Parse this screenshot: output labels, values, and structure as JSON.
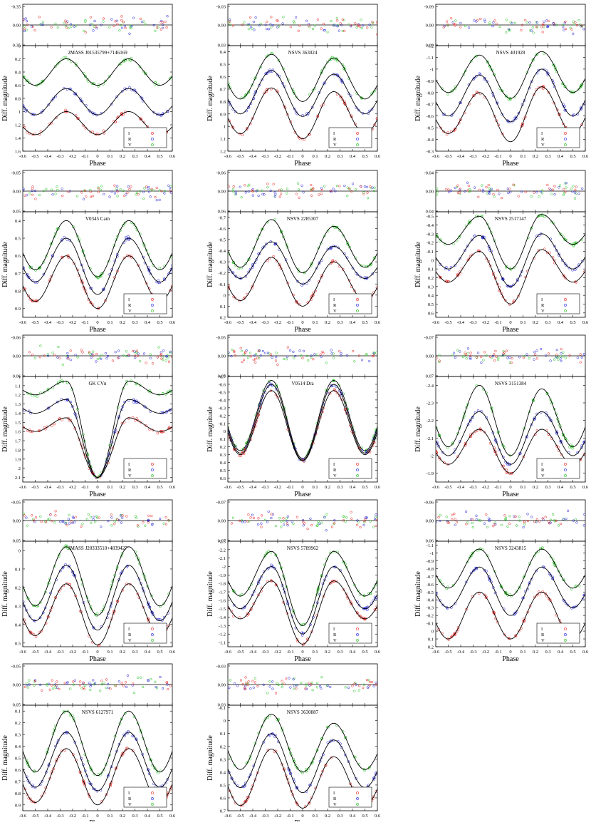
{
  "figure": {
    "x_label": "Phase",
    "y_label": "Diff. magnitude",
    "legend": [
      "I",
      "R",
      "V"
    ],
    "colors": {
      "I": "#e8201e",
      "R": "#1f1fd8",
      "V": "#22c21e",
      "model": "#000000"
    },
    "x_ticks": [
      "-0.6",
      "-0.5",
      "-0.4",
      "-0.3",
      "-0.2",
      "-0.1",
      "0",
      "0.1",
      "0.2",
      "0.3",
      "0.4",
      "0.5",
      "0.6"
    ]
  },
  "chart_data": [
    {
      "type": "scatter",
      "title": "2MASS J01535799+7146169",
      "xlim": [
        -0.6,
        0.6
      ],
      "residual_ticks": [
        "-0.35",
        "0.00",
        "0.35"
      ],
      "ylim": [
        1.6,
        0.0
      ],
      "y_ticks": [
        "0",
        "0.2",
        "0.4",
        "0.6",
        "0.8",
        "1",
        "1.2",
        "1.4",
        "1.6"
      ],
      "x": [
        -0.5,
        -0.25,
        0,
        0.25,
        0.5
      ],
      "series": [
        {
          "name": "V",
          "values": [
            0.6,
            0.2,
            0.6,
            0.2,
            0.6
          ]
        },
        {
          "name": "R",
          "values": [
            1.05,
            0.65,
            1.05,
            0.65,
            1.05
          ]
        },
        {
          "name": "I",
          "values": [
            1.35,
            1.0,
            1.35,
            1.0,
            1.35
          ]
        }
      ]
    },
    {
      "type": "scatter",
      "title": "NSVS 363024",
      "xlim": [
        -0.6,
        0.6
      ],
      "residual_ticks": [
        "-0.03",
        "0.00",
        "0.03"
      ],
      "ylim": [
        1.2,
        0.35
      ],
      "y_ticks": [
        "0.4",
        "0.5",
        "0.6",
        "0.7",
        "0.8",
        "0.9",
        "1",
        "1.1",
        "1.2"
      ],
      "x": [
        -0.5,
        -0.25,
        0,
        0.25,
        0.5
      ],
      "series": [
        {
          "name": "V",
          "values": [
            0.78,
            0.42,
            0.8,
            0.45,
            0.78
          ]
        },
        {
          "name": "R",
          "values": [
            0.9,
            0.55,
            0.92,
            0.58,
            0.9
          ]
        },
        {
          "name": "I",
          "values": [
            1.06,
            0.69,
            1.1,
            0.72,
            1.06
          ]
        }
      ]
    },
    {
      "type": "scatter",
      "title": "NSVS 401928",
      "xlim": [
        -0.6,
        0.6
      ],
      "residual_ticks": [
        "-0.09",
        "0.00",
        "0.09"
      ],
      "ylim": [
        -0.3,
        -1.2
      ],
      "y_ticks": [
        "-1.2",
        "-1.1",
        "-1",
        "-0.9",
        "-0.8",
        "-0.7",
        "-0.6",
        "-0.5",
        "-0.4",
        "-0.3"
      ],
      "x": [
        -0.5,
        -0.25,
        0,
        0.25,
        0.5
      ],
      "series": [
        {
          "name": "V",
          "values": [
            -0.8,
            -1.12,
            -0.75,
            -1.15,
            -0.8
          ]
        },
        {
          "name": "R",
          "values": [
            -0.6,
            -0.95,
            -0.55,
            -1.0,
            -0.6
          ]
        },
        {
          "name": "I",
          "values": [
            -0.45,
            -0.8,
            -0.38,
            -0.85,
            -0.45
          ]
        }
      ]
    },
    {
      "type": "scatter",
      "title": "V0345 Cam",
      "xlim": [
        -0.6,
        0.6
      ],
      "residual_ticks": [
        "-0.05",
        "0.00",
        "0.05"
      ],
      "ylim": [
        0.95,
        0.35
      ],
      "y_ticks": [
        "0.4",
        "0.5",
        "0.6",
        "0.7",
        "0.8",
        "0.9"
      ],
      "x": [
        -0.5,
        -0.25,
        0,
        0.25,
        0.5
      ],
      "series": [
        {
          "name": "V",
          "values": [
            0.68,
            0.4,
            0.72,
            0.4,
            0.68
          ]
        },
        {
          "name": "R",
          "values": [
            0.75,
            0.5,
            0.82,
            0.5,
            0.75
          ]
        },
        {
          "name": "I",
          "values": [
            0.86,
            0.6,
            0.9,
            0.6,
            0.86
          ]
        }
      ]
    },
    {
      "type": "scatter",
      "title": "NSVS 2285307",
      "xlim": [
        -0.6,
        0.6
      ],
      "residual_ticks": [
        "-0.06",
        "0.00",
        "0.06"
      ],
      "ylim": [
        0.2,
        -0.75
      ],
      "y_ticks": [
        "-0.7",
        "-0.6",
        "-0.5",
        "-0.4",
        "-0.3",
        "-0.2",
        "-0.1",
        "0",
        "0.1",
        "0.2"
      ],
      "x": [
        -0.5,
        -0.25,
        0,
        0.25,
        0.5
      ],
      "series": [
        {
          "name": "V",
          "values": [
            -0.25,
            -0.68,
            -0.2,
            -0.62,
            -0.25
          ]
        },
        {
          "name": "R",
          "values": [
            -0.15,
            -0.48,
            -0.1,
            -0.44,
            -0.15
          ]
        },
        {
          "name": "I",
          "values": [
            0.05,
            -0.34,
            0.1,
            -0.3,
            0.05
          ]
        }
      ]
    },
    {
      "type": "scatter",
      "title": "NSVS 2517147",
      "xlim": [
        -0.6,
        0.6
      ],
      "residual_ticks": [
        "-0.04",
        "0.00",
        "0.04"
      ],
      "ylim": [
        0.65,
        -0.55
      ],
      "y_ticks": [
        "-0.5",
        "-0.4",
        "-0.3",
        "-0.2",
        "-0.1",
        "0",
        "0.1",
        "0.2",
        "0.3",
        "0.4",
        "0.5",
        "0.6"
      ],
      "x": [
        -0.5,
        -0.25,
        0,
        0.25,
        0.5
      ],
      "series": [
        {
          "name": "V",
          "values": [
            -0.18,
            -0.5,
            0.1,
            -0.52,
            -0.18
          ]
        },
        {
          "name": "R",
          "values": [
            0.1,
            -0.28,
            0.3,
            -0.3,
            0.1
          ]
        },
        {
          "name": "I",
          "values": [
            0.25,
            -0.1,
            0.5,
            -0.12,
            0.25
          ]
        }
      ]
    },
    {
      "type": "scatter",
      "title": "GK CVn",
      "xlim": [
        -0.6,
        0.6
      ],
      "residual_ticks": [
        "-0.06",
        "0.00",
        "0.06"
      ],
      "ylim": [
        2.15,
        1.0
      ],
      "y_ticks": [
        "1",
        "1.1",
        "1.2",
        "1.3",
        "1.4",
        "1.5",
        "1.6",
        "1.7",
        "1.8",
        "1.9",
        "2",
        "2.1"
      ],
      "x": [
        -0.5,
        -0.25,
        0,
        0.25,
        0.5
      ],
      "series": [
        {
          "name": "V",
          "values": [
            1.2,
            1.05,
            2.1,
            1.05,
            1.2
          ]
        },
        {
          "name": "R",
          "values": [
            1.4,
            1.25,
            2.1,
            1.25,
            1.4
          ]
        },
        {
          "name": "I",
          "values": [
            1.6,
            1.45,
            2.1,
            1.45,
            1.6
          ]
        }
      ]
    },
    {
      "type": "scatter",
      "title": "V0514 Dra",
      "xlim": [
        -0.6,
        0.6
      ],
      "residual_ticks": [
        "-0.05",
        "0.00",
        "0.05"
      ],
      "ylim": [
        0.65,
        -0.7
      ],
      "y_ticks": [
        "-0.7",
        "-0.6",
        "-0.5",
        "-0.4",
        "-0.3",
        "-0.2",
        "-0.1",
        "0",
        "0.1",
        "0.2",
        "0.3",
        "0.4",
        "0.5",
        "0.6"
      ],
      "x": [
        -0.5,
        -0.25,
        0,
        0.25,
        0.5
      ],
      "series": [
        {
          "name": "V",
          "values": [
            0.25,
            -0.65,
            0.35,
            -0.65,
            0.25
          ]
        },
        {
          "name": "R",
          "values": [
            0.28,
            -0.6,
            0.37,
            -0.6,
            0.28
          ]
        },
        {
          "name": "I",
          "values": [
            0.3,
            -0.52,
            0.38,
            -0.52,
            0.3
          ]
        }
      ]
    },
    {
      "type": "scatter",
      "title": "NSVS 3151384",
      "xlim": [
        -0.6,
        0.6
      ],
      "residual_ticks": [
        "-0.07",
        "0.00",
        "0.07"
      ],
      "ylim": [
        -1.85,
        -2.45
      ],
      "y_ticks": [
        "-2.4",
        "-2.3",
        "-2.2",
        "-2.1",
        "-2",
        "-1.9"
      ],
      "x": [
        -0.5,
        -0.25,
        0,
        0.25,
        0.5
      ],
      "series": [
        {
          "name": "V",
          "values": [
            -2.05,
            -2.4,
            -2.0,
            -2.38,
            -2.05
          ]
        },
        {
          "name": "R",
          "values": [
            -2.0,
            -2.25,
            -1.95,
            -2.25,
            -2.0
          ]
        },
        {
          "name": "I",
          "values": [
            -1.95,
            -2.15,
            -1.9,
            -2.15,
            -1.95
          ]
        }
      ]
    },
    {
      "type": "scatter",
      "title": "2MASS J20333510+4839427",
      "xlim": [
        -0.6,
        0.6
      ],
      "residual_ticks": [
        "-0.05",
        "0.00",
        "0.05"
      ],
      "ylim": [
        0.52,
        -0.05
      ],
      "y_ticks": [
        "0",
        "0.1",
        "0.2",
        "0.3",
        "0.4",
        "0.5"
      ],
      "x": [
        -0.5,
        -0.25,
        0,
        0.25,
        0.5
      ],
      "series": [
        {
          "name": "V",
          "values": [
            0.3,
            -0.02,
            0.35,
            -0.02,
            0.3
          ]
        },
        {
          "name": "R",
          "values": [
            0.38,
            0.08,
            0.43,
            0.08,
            0.38
          ]
        },
        {
          "name": "I",
          "values": [
            0.46,
            0.18,
            0.51,
            0.18,
            0.46
          ]
        }
      ]
    },
    {
      "type": "scatter",
      "title": "NSVS 5789962",
      "xlim": [
        -0.6,
        0.6
      ],
      "residual_ticks": [
        "-0.07",
        "0.00",
        "0.07"
      ],
      "ylim": [
        -1.05,
        -2.3
      ],
      "y_ticks": [
        "-2.3",
        "-2.2",
        "-2.1",
        "-2",
        "-1.9",
        "-1.8",
        "-1.7",
        "-1.6",
        "-1.5",
        "-1.4",
        "-1.3",
        "-1.2",
        "-1.1"
      ],
      "x": [
        -0.5,
        -0.25,
        0,
        0.25,
        0.5
      ],
      "series": [
        {
          "name": "V",
          "values": [
            -1.65,
            -2.18,
            -1.3,
            -2.18,
            -1.65
          ]
        },
        {
          "name": "R",
          "values": [
            -1.5,
            -2.0,
            -1.2,
            -2.0,
            -1.5
          ]
        },
        {
          "name": "I",
          "values": [
            -1.38,
            -1.83,
            -1.08,
            -1.83,
            -1.38
          ]
        }
      ]
    },
    {
      "type": "scatter",
      "title": "NSVS 3243815",
      "xlim": [
        -0.6,
        0.6
      ],
      "residual_ticks": [
        "-0.06",
        "0.00",
        "0.06"
      ],
      "ylim": [
        0.2,
        -1.15
      ],
      "y_ticks": [
        "-1.1",
        "-1",
        "-0.9",
        "-0.8",
        "-0.7",
        "-0.6",
        "-0.5",
        "-0.4",
        "-0.3",
        "-0.2",
        "-0.1",
        "0",
        "0.1",
        "0.2"
      ],
      "x": [
        -0.5,
        -0.25,
        0,
        0.25,
        0.5
      ],
      "series": [
        {
          "name": "V",
          "values": [
            -0.55,
            -1.05,
            -0.45,
            -1.05,
            -0.55
          ]
        },
        {
          "name": "R",
          "values": [
            -0.3,
            -0.82,
            -0.2,
            -0.82,
            -0.3
          ]
        },
        {
          "name": "I",
          "values": [
            0.1,
            -0.5,
            0.1,
            -0.5,
            0.1
          ]
        }
      ]
    },
    {
      "type": "scatter",
      "title": "NSVS 6127971",
      "xlim": [
        -0.6,
        0.6
      ],
      "residual_ticks": [
        "-0.05",
        "0.00",
        "0.05"
      ],
      "ylim": [
        0.95,
        0.05
      ],
      "y_ticks": [
        "0.1",
        "0.2",
        "0.3",
        "0.4",
        "0.5",
        "0.6",
        "0.7",
        "0.8",
        "0.9"
      ],
      "x": [
        -0.5,
        -0.25,
        0,
        0.25,
        0.5
      ],
      "series": [
        {
          "name": "V",
          "values": [
            0.62,
            0.1,
            0.65,
            0.1,
            0.62
          ]
        },
        {
          "name": "R",
          "values": [
            0.75,
            0.28,
            0.78,
            0.28,
            0.75
          ]
        },
        {
          "name": "I",
          "values": [
            0.88,
            0.42,
            0.9,
            0.42,
            0.88
          ]
        }
      ]
    },
    {
      "type": "scatter",
      "title": "NSVS 3630887",
      "xlim": [
        -0.6,
        0.6
      ],
      "residual_ticks": [
        "-0.03",
        "0.00",
        "0.03"
      ],
      "ylim": [
        0.7,
        -0.12
      ],
      "y_ticks": [
        "-0.1",
        "0",
        "0.1",
        "0.2",
        "0.3",
        "0.4",
        "0.5",
        "0.6",
        "0.7"
      ],
      "x": [
        -0.5,
        -0.25,
        0,
        0.25,
        0.5
      ],
      "series": [
        {
          "name": "V",
          "values": [
            0.38,
            -0.05,
            0.4,
            0.02,
            0.38
          ]
        },
        {
          "name": "R",
          "values": [
            0.52,
            0.1,
            0.56,
            0.15,
            0.52
          ]
        },
        {
          "name": "I",
          "values": [
            0.66,
            0.22,
            0.68,
            0.28,
            0.66
          ]
        }
      ]
    }
  ]
}
